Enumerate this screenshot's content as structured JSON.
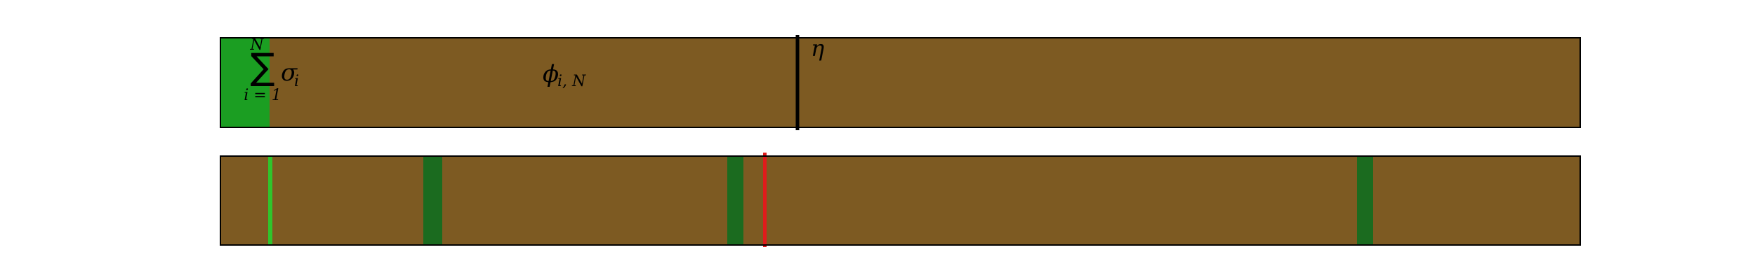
{
  "colors": {
    "background": "#ffffff",
    "bar_fill": "#7d5a22",
    "bar_border": "#000000",
    "green_fill": "#1b9e22",
    "dark_green_band": "#1b6b1f",
    "light_green_line": "#2fc42c",
    "red_line": "#e01b1b",
    "divider": "#000000"
  },
  "top_bar": {
    "sum_label": {
      "symbol": "∑",
      "upper_limit": "N",
      "lower_limit": "i = 1",
      "operand": "σ",
      "operand_subscript": "i"
    },
    "phi_label": {
      "symbol": "ϕ",
      "subscript": "i, N"
    },
    "eta_label": "η"
  },
  "bottom_bar": {
    "bands": [
      "dark-green",
      "dark-green",
      "dark-green"
    ],
    "lines": [
      "light-green",
      "red"
    ]
  }
}
